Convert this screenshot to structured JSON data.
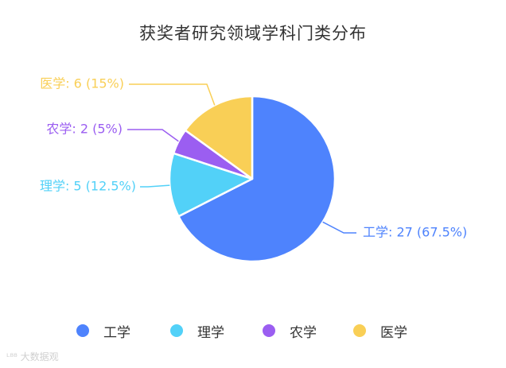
{
  "chart_data": {
    "type": "pie",
    "title": "获奖者研究领域学科门类分布",
    "unit_note": "",
    "slices": [
      {
        "name": "工学",
        "value": 27,
        "percent": "67.5%",
        "label": "工学: 27 (67.5%)",
        "color": "#4e83fd"
      },
      {
        "name": "理学",
        "value": 5,
        "percent": "12.5%",
        "label": "理学: 5 (12.5%)",
        "color": "#52d1f8"
      },
      {
        "name": "农学",
        "value": 2,
        "percent": "5%",
        "label": "农学: 2 (5%)",
        "color": "#9b5ef1"
      },
      {
        "name": "医学",
        "value": 6,
        "percent": "15%",
        "label": "医学: 6 (15%)",
        "color": "#f9cf56"
      }
    ],
    "legend_position": "bottom",
    "start_angle": "12 o'clock",
    "direction": "clockwise"
  },
  "watermark": {
    "text": "大数据观"
  }
}
